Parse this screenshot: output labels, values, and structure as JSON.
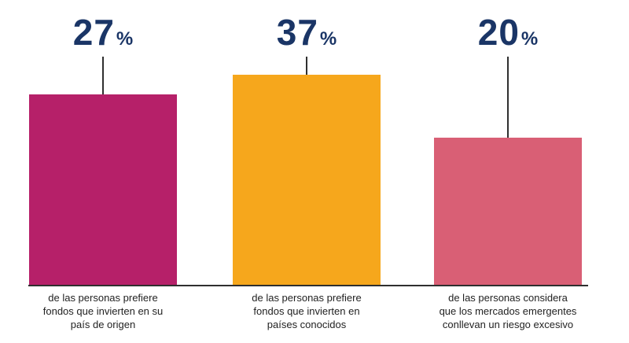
{
  "chart_data": {
    "type": "bar",
    "title": "",
    "unit": "%",
    "categories": [
      "de las personas prefiere fondos que invierten en su país de origen",
      "de las personas prefiere fondos que invierten en países conocidos",
      "de las personas considera que los mercados emergentes conllevan un riesgo excesivo"
    ],
    "values": [
      27,
      37,
      20
    ],
    "legend": "none",
    "axes": "no axes or gridlines; baseline rule only",
    "bars": [
      {
        "value": "27",
        "unit": "%",
        "color": "#b62069",
        "caption_lines": [
          "de las personas prefiere",
          "fondos que invierten en su",
          "país de origen"
        ]
      },
      {
        "value": "37",
        "unit": "%",
        "color": "#f6a71c",
        "caption_lines": [
          "de las personas prefiere",
          "fondos que invierten en",
          "países conocidos"
        ]
      },
      {
        "value": "20",
        "unit": "%",
        "color": "#d95f75",
        "caption_lines": [
          "de las personas considera",
          "que los mercados emergentes",
          "conllevan un riesgo excesivo"
        ]
      }
    ],
    "colors": {
      "value_text": "#1a3566",
      "caption_text": "#222222",
      "line": "#2f2f2f",
      "background": "#ffffff"
    }
  }
}
